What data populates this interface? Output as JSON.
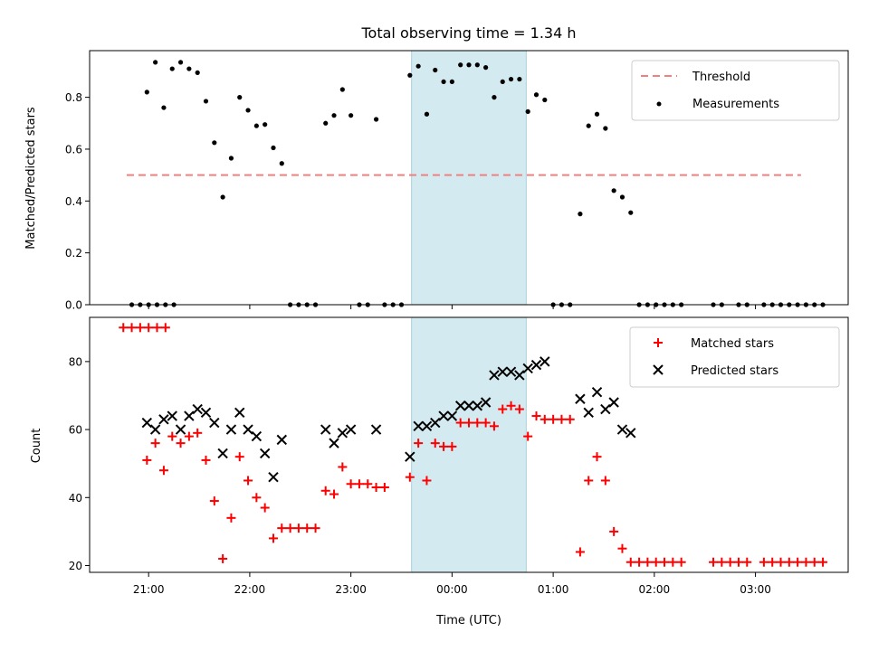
{
  "chart_data": [
    {
      "type": "scatter",
      "title": "Total observing time = 1.34 h",
      "xlabel": "",
      "ylabel": "Matched/Predicted stars",
      "xlim": [
        "20:25",
        "03:55"
      ],
      "ylim": [
        0,
        0.98
      ],
      "yticks": [
        "0.0",
        "0.2",
        "0.4",
        "0.6",
        "0.8"
      ],
      "x_ticks": [
        "21:00",
        "22:00",
        "23:00",
        "00:00",
        "01:00",
        "02:00",
        "03:00"
      ],
      "highlight_span": {
        "start": "23:36",
        "end": "00:44",
        "color": "#d4eaf1"
      },
      "threshold": {
        "name": "Threshold",
        "value": 0.5,
        "from": "20:47",
        "to": "03:27",
        "color": "#f08080"
      },
      "legend_position": "upper right",
      "series": [
        {
          "name": "Measurements",
          "color": "#000000",
          "marker": "dot",
          "points": [
            [
              "20:50",
              0
            ],
            [
              "20:55",
              0
            ],
            [
              "21:00",
              0
            ],
            [
              "21:05",
              0
            ],
            [
              "21:10",
              0
            ],
            [
              "21:15",
              0
            ],
            [
              "20:59",
              0.82
            ],
            [
              "21:04",
              0.935
            ],
            [
              "21:09",
              0.76
            ],
            [
              "21:14",
              0.91
            ],
            [
              "21:19",
              0.935
            ],
            [
              "21:24",
              0.91
            ],
            [
              "21:29",
              0.895
            ],
            [
              "21:34",
              0.785
            ],
            [
              "21:39",
              0.625
            ],
            [
              "21:44",
              0.415
            ],
            [
              "21:49",
              0.565
            ],
            [
              "21:54",
              0.8
            ],
            [
              "21:59",
              0.75
            ],
            [
              "22:04",
              0.69
            ],
            [
              "22:09",
              0.695
            ],
            [
              "22:14",
              0.605
            ],
            [
              "22:19",
              0.545
            ],
            [
              "22:24",
              0
            ],
            [
              "22:29",
              0
            ],
            [
              "22:34",
              0
            ],
            [
              "22:39",
              0
            ],
            [
              "22:45",
              0.7
            ],
            [
              "22:50",
              0.73
            ],
            [
              "22:55",
              0.83
            ],
            [
              "23:00",
              0.73
            ],
            [
              "23:05",
              0
            ],
            [
              "23:10",
              0
            ],
            [
              "23:15",
              0.715
            ],
            [
              "23:20",
              0
            ],
            [
              "23:25",
              0
            ],
            [
              "23:30",
              0
            ],
            [
              "23:35",
              0.885
            ],
            [
              "23:40",
              0.92
            ],
            [
              "23:45",
              0.735
            ],
            [
              "23:50",
              0.905
            ],
            [
              "23:55",
              0.86
            ],
            [
              "00:00",
              0.86
            ],
            [
              "00:05",
              0.925
            ],
            [
              "00:10",
              0.925
            ],
            [
              "00:15",
              0.925
            ],
            [
              "00:20",
              0.915
            ],
            [
              "00:25",
              0.8
            ],
            [
              "00:30",
              0.86
            ],
            [
              "00:35",
              0.87
            ],
            [
              "00:40",
              0.87
            ],
            [
              "00:45",
              0.745
            ],
            [
              "00:50",
              0.81
            ],
            [
              "00:55",
              0.79
            ],
            [
              "01:00",
              0
            ],
            [
              "01:05",
              0
            ],
            [
              "01:10",
              0
            ],
            [
              "01:16",
              0.35
            ],
            [
              "01:21",
              0.69
            ],
            [
              "01:26",
              0.735
            ],
            [
              "01:31",
              0.68
            ],
            [
              "01:36",
              0.44
            ],
            [
              "01:41",
              0.415
            ],
            [
              "01:46",
              0.355
            ],
            [
              "01:51",
              0
            ],
            [
              "01:56",
              0
            ],
            [
              "02:01",
              0
            ],
            [
              "02:06",
              0
            ],
            [
              "02:11",
              0
            ],
            [
              "02:16",
              0
            ],
            [
              "02:35",
              0
            ],
            [
              "02:40",
              0
            ],
            [
              "02:50",
              0
            ],
            [
              "02:55",
              0
            ],
            [
              "03:05",
              0
            ],
            [
              "03:10",
              0
            ],
            [
              "03:15",
              0
            ],
            [
              "03:20",
              0
            ],
            [
              "03:25",
              0
            ],
            [
              "03:30",
              0
            ],
            [
              "03:35",
              0
            ],
            [
              "03:40",
              0
            ]
          ]
        }
      ]
    },
    {
      "type": "scatter",
      "title": "",
      "xlabel": "Time (UTC)",
      "ylabel": "Count",
      "xlim": [
        "20:25",
        "03:55"
      ],
      "ylim": [
        18,
        93
      ],
      "yticks": [
        "20",
        "40",
        "60",
        "80"
      ],
      "x_ticks": [
        "21:00",
        "22:00",
        "23:00",
        "00:00",
        "01:00",
        "02:00",
        "03:00"
      ],
      "highlight_span": {
        "start": "23:36",
        "end": "00:44",
        "color": "#d4eaf1"
      },
      "legend_position": "upper right",
      "series": [
        {
          "name": "Matched stars",
          "color": "#ff0000",
          "marker": "plus",
          "points": [
            [
              "20:45",
              90
            ],
            [
              "20:50",
              90
            ],
            [
              "20:55",
              90
            ],
            [
              "21:00",
              90
            ],
            [
              "21:05",
              90
            ],
            [
              "21:10",
              90
            ],
            [
              "20:59",
              51
            ],
            [
              "21:04",
              56
            ],
            [
              "21:09",
              48
            ],
            [
              "21:14",
              58
            ],
            [
              "21:19",
              56
            ],
            [
              "21:24",
              58
            ],
            [
              "21:29",
              59
            ],
            [
              "21:34",
              51
            ],
            [
              "21:39",
              39
            ],
            [
              "21:44",
              22
            ],
            [
              "21:49",
              34
            ],
            [
              "21:54",
              52
            ],
            [
              "21:59",
              45
            ],
            [
              "22:04",
              40
            ],
            [
              "22:09",
              37
            ],
            [
              "22:14",
              28
            ],
            [
              "22:19",
              31
            ],
            [
              "22:24",
              31
            ],
            [
              "22:29",
              31
            ],
            [
              "22:34",
              31
            ],
            [
              "22:39",
              31
            ],
            [
              "22:45",
              42
            ],
            [
              "22:50",
              41
            ],
            [
              "22:55",
              49
            ],
            [
              "23:00",
              44
            ],
            [
              "23:05",
              44
            ],
            [
              "23:10",
              44
            ],
            [
              "23:15",
              43
            ],
            [
              "23:20",
              43
            ],
            [
              "23:35",
              46
            ],
            [
              "23:40",
              56
            ],
            [
              "23:45",
              45
            ],
            [
              "23:50",
              56
            ],
            [
              "23:55",
              55
            ],
            [
              "00:00",
              55
            ],
            [
              "00:05",
              62
            ],
            [
              "00:10",
              62
            ],
            [
              "00:15",
              62
            ],
            [
              "00:20",
              62
            ],
            [
              "00:25",
              61
            ],
            [
              "00:30",
              66
            ],
            [
              "00:35",
              67
            ],
            [
              "00:40",
              66
            ],
            [
              "00:45",
              58
            ],
            [
              "00:50",
              64
            ],
            [
              "00:55",
              63
            ],
            [
              "01:00",
              63
            ],
            [
              "01:05",
              63
            ],
            [
              "01:10",
              63
            ],
            [
              "01:16",
              24
            ],
            [
              "01:21",
              45
            ],
            [
              "01:26",
              52
            ],
            [
              "01:31",
              45
            ],
            [
              "01:36",
              30
            ],
            [
              "01:41",
              25
            ],
            [
              "01:46",
              21
            ],
            [
              "01:51",
              21
            ],
            [
              "01:56",
              21
            ],
            [
              "02:01",
              21
            ],
            [
              "02:06",
              21
            ],
            [
              "02:11",
              21
            ],
            [
              "02:16",
              21
            ],
            [
              "02:35",
              21
            ],
            [
              "02:40",
              21
            ],
            [
              "02:45",
              21
            ],
            [
              "02:50",
              21
            ],
            [
              "02:55",
              21
            ],
            [
              "03:05",
              21
            ],
            [
              "03:10",
              21
            ],
            [
              "03:15",
              21
            ],
            [
              "03:20",
              21
            ],
            [
              "03:25",
              21
            ],
            [
              "03:30",
              21
            ],
            [
              "03:35",
              21
            ],
            [
              "03:40",
              21
            ]
          ]
        },
        {
          "name": "Predicted stars",
          "color": "#000000",
          "marker": "x",
          "points": [
            [
              "20:59",
              62
            ],
            [
              "21:04",
              60
            ],
            [
              "21:09",
              63
            ],
            [
              "21:14",
              64
            ],
            [
              "21:19",
              60
            ],
            [
              "21:24",
              64
            ],
            [
              "21:29",
              66
            ],
            [
              "21:34",
              65
            ],
            [
              "21:39",
              62
            ],
            [
              "21:44",
              53
            ],
            [
              "21:49",
              60
            ],
            [
              "21:54",
              65
            ],
            [
              "21:59",
              60
            ],
            [
              "22:04",
              58
            ],
            [
              "22:09",
              53
            ],
            [
              "22:14",
              46
            ],
            [
              "22:19",
              57
            ],
            [
              "22:45",
              60
            ],
            [
              "22:50",
              56
            ],
            [
              "22:55",
              59
            ],
            [
              "23:00",
              60
            ],
            [
              "23:15",
              60
            ],
            [
              "23:35",
              52
            ],
            [
              "23:40",
              61
            ],
            [
              "23:45",
              61
            ],
            [
              "23:50",
              62
            ],
            [
              "23:55",
              64
            ],
            [
              "00:00",
              64
            ],
            [
              "00:05",
              67
            ],
            [
              "00:10",
              67
            ],
            [
              "00:15",
              67
            ],
            [
              "00:20",
              68
            ],
            [
              "00:25",
              76
            ],
            [
              "00:30",
              77
            ],
            [
              "00:35",
              77
            ],
            [
              "00:40",
              76
            ],
            [
              "00:45",
              78
            ],
            [
              "00:50",
              79
            ],
            [
              "00:55",
              80
            ],
            [
              "01:16",
              69
            ],
            [
              "01:21",
              65
            ],
            [
              "01:26",
              71
            ],
            [
              "01:31",
              66
            ],
            [
              "01:36",
              68
            ],
            [
              "01:41",
              60
            ],
            [
              "01:46",
              59
            ]
          ]
        }
      ]
    }
  ]
}
